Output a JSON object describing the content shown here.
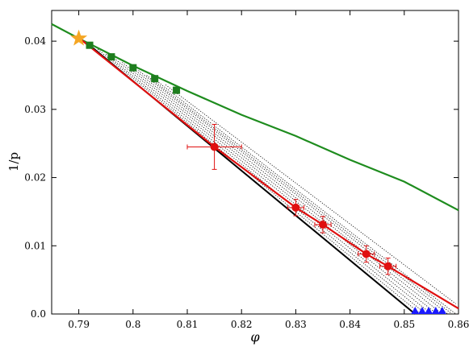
{
  "chart_data": {
    "type": "scatter",
    "title": "",
    "xlabel": "φ",
    "ylabel": "1/p",
    "xlim": [
      0.785,
      0.86
    ],
    "ylim": [
      0.0,
      0.0445
    ],
    "x_ticks": [
      0.79,
      0.8,
      0.81,
      0.82,
      0.83,
      0.84,
      0.85,
      0.86
    ],
    "y_ticks": [
      0.0,
      0.01,
      0.02,
      0.03,
      0.04
    ],
    "x_tick_labels": [
      "0.79",
      "0.8",
      "0.81",
      "0.82",
      "0.83",
      "0.84",
      "0.85",
      "0.86"
    ],
    "y_tick_labels": [
      "0.0",
      "0.01",
      "0.02",
      "0.03",
      "0.04"
    ],
    "grid": false,
    "legend": false,
    "series": [
      {
        "kind": "line",
        "color": "#1e8c1e",
        "points": [
          [
            0.785,
            0.0425
          ],
          [
            0.79,
            0.0404
          ],
          [
            0.8,
            0.0364
          ],
          [
            0.81,
            0.0327
          ],
          [
            0.82,
            0.0292
          ],
          [
            0.83,
            0.0261
          ],
          [
            0.84,
            0.0226
          ],
          [
            0.85,
            0.0194
          ],
          [
            0.86,
            0.0152
          ]
        ]
      },
      {
        "kind": "markers",
        "marker": "square",
        "color": "#1e7d1e",
        "points": [
          [
            0.792,
            0.0394
          ],
          [
            0.796,
            0.0377
          ],
          [
            0.8,
            0.0361
          ],
          [
            0.804,
            0.0345
          ],
          [
            0.808,
            0.0328
          ]
        ]
      },
      {
        "kind": "line",
        "color": "#000000",
        "points": [
          [
            0.792,
            0.0394
          ],
          [
            0.852,
            0.0
          ]
        ]
      },
      {
        "kind": "line",
        "color": "#e01010",
        "points": [
          [
            0.79,
            0.0405
          ],
          [
            0.815,
            0.0245
          ],
          [
            0.83,
            0.0156
          ],
          [
            0.835,
            0.0131
          ],
          [
            0.843,
            0.0088
          ],
          [
            0.847,
            0.007
          ],
          [
            0.86,
            0.0008
          ]
        ]
      },
      {
        "kind": "errorbars",
        "marker": "circle",
        "color": "#e01010",
        "points": [
          {
            "x": 0.815,
            "y": 0.0245,
            "xerr": 0.005,
            "yerr": 0.0033
          },
          {
            "x": 0.83,
            "y": 0.0156,
            "xerr": 0.0015,
            "yerr": 0.0012
          },
          {
            "x": 0.835,
            "y": 0.0131,
            "xerr": 0.0015,
            "yerr": 0.0012
          },
          {
            "x": 0.843,
            "y": 0.0088,
            "xerr": 0.0015,
            "yerr": 0.0012
          },
          {
            "x": 0.847,
            "y": 0.007,
            "xerr": 0.0015,
            "yerr": 0.0012
          }
        ]
      },
      {
        "kind": "markers",
        "marker": "triangle",
        "color": "#1a1aff",
        "points": [
          [
            0.852,
            0.0
          ],
          [
            0.8533,
            0.0
          ],
          [
            0.8545,
            0.0
          ],
          [
            0.8558,
            0.0
          ],
          [
            0.857,
            0.0
          ]
        ]
      },
      {
        "kind": "markers",
        "marker": "star",
        "color": "#f5a623",
        "points": [
          [
            0.79,
            0.0404
          ]
        ]
      }
    ],
    "dotted_lines": {
      "color": "#000000",
      "lines": [
        [
          [
            0.7935,
            0.0388
          ],
          [
            0.853,
            0.0
          ]
        ],
        [
          [
            0.795,
            0.0381
          ],
          [
            0.854,
            0.0
          ]
        ],
        [
          [
            0.7965,
            0.0375
          ],
          [
            0.855,
            0.0
          ]
        ],
        [
          [
            0.798,
            0.0369
          ],
          [
            0.856,
            0.0
          ]
        ],
        [
          [
            0.7995,
            0.0363
          ],
          [
            0.857,
            0.0
          ]
        ],
        [
          [
            0.801,
            0.0357
          ],
          [
            0.858,
            0.0
          ]
        ],
        [
          [
            0.8025,
            0.035
          ],
          [
            0.8588,
            0.0
          ]
        ],
        [
          [
            0.804,
            0.0344
          ],
          [
            0.8595,
            0.0
          ]
        ],
        [
          [
            0.806,
            0.0336
          ],
          [
            0.8595,
            0.0015
          ]
        ]
      ]
    }
  }
}
